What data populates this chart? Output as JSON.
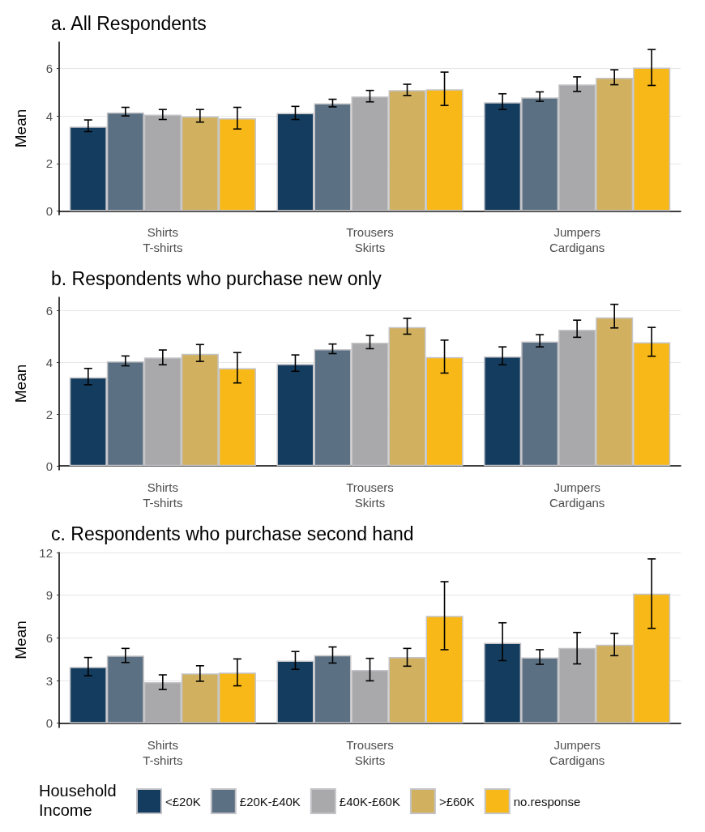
{
  "chart_data": [
    {
      "type": "bar",
      "title": "a. All Respondents",
      "ylabel": "Mean",
      "categories": [
        "Shirts\nT-shirts",
        "Trousers\nSkirts",
        "Jumpers\nCardigans"
      ],
      "ylim": [
        -0.15,
        7.1
      ],
      "yticks": [
        0,
        2,
        4,
        6
      ],
      "grid": "y",
      "legend": false,
      "series": [
        {
          "color": "#133c5e",
          "values": [
            3.55,
            4.12,
            4.57
          ],
          "errors": [
            [
              3.34,
              3.83
            ],
            [
              3.85,
              4.4
            ],
            [
              4.27,
              4.93
            ]
          ]
        },
        {
          "color": "#5b7083",
          "values": [
            4.15,
            4.53,
            4.78
          ],
          "errors": [
            [
              4.0,
              4.36
            ],
            [
              4.38,
              4.7
            ],
            [
              4.61,
              5.01
            ]
          ]
        },
        {
          "color": "#a9a9ab",
          "values": [
            4.05,
            4.82,
            5.32
          ],
          "errors": [
            [
              3.85,
              4.27
            ],
            [
              4.59,
              5.07
            ],
            [
              5.03,
              5.64
            ]
          ]
        },
        {
          "color": "#d1b15f",
          "values": [
            3.98,
            5.08,
            5.6
          ],
          "errors": [
            [
              3.74,
              4.27
            ],
            [
              4.86,
              5.33
            ],
            [
              5.31,
              5.94
            ]
          ]
        },
        {
          "color": "#f8b918",
          "values": [
            3.9,
            5.12,
            6.03
          ],
          "errors": [
            [
              3.45,
              4.36
            ],
            [
              4.44,
              5.84
            ],
            [
              5.28,
              6.79
            ]
          ]
        }
      ]
    },
    {
      "type": "bar",
      "title": "b. Respondents who purchase new only",
      "ylabel": "Mean",
      "categories": [
        "Shirts\nT-shirts",
        "Trousers\nSkirts",
        "Jumpers\nCardigans"
      ],
      "ylim": [
        -0.15,
        6.5
      ],
      "yticks": [
        0,
        2,
        4,
        6
      ],
      "grid": "y",
      "legend": false,
      "series": [
        {
          "color": "#133c5e",
          "values": [
            3.42,
            3.93,
            4.22
          ],
          "errors": [
            [
              3.13,
              3.76
            ],
            [
              3.65,
              4.28
            ],
            [
              3.9,
              4.59
            ]
          ]
        },
        {
          "color": "#5b7083",
          "values": [
            4.03,
            4.5,
            4.8
          ],
          "errors": [
            [
              3.86,
              4.24
            ],
            [
              4.33,
              4.7
            ],
            [
              4.59,
              5.06
            ]
          ]
        },
        {
          "color": "#a9a9ab",
          "values": [
            4.18,
            4.75,
            5.25
          ],
          "errors": [
            [
              3.9,
              4.47
            ],
            [
              4.52,
              5.03
            ],
            [
              4.96,
              5.62
            ]
          ]
        },
        {
          "color": "#d1b15f",
          "values": [
            4.32,
            5.35,
            5.73
          ],
          "errors": [
            [
              4.03,
              4.68
            ],
            [
              5.08,
              5.69
            ],
            [
              5.32,
              6.23
            ]
          ]
        },
        {
          "color": "#f8b918",
          "values": [
            3.77,
            4.2,
            4.77
          ],
          "errors": [
            [
              3.2,
              4.37
            ],
            [
              3.58,
              4.85
            ],
            [
              4.23,
              5.34
            ]
          ]
        }
      ]
    },
    {
      "type": "bar",
      "title": "c. Respondents who purchase second hand",
      "ylabel": "Mean",
      "legend_title": "Household\nIncome",
      "categories": [
        "Shirts\nT-shirts",
        "Trousers\nSkirts",
        "Jumpers\nCardigans"
      ],
      "ylim": [
        -0.3,
        12
      ],
      "yticks": [
        0,
        3,
        6,
        9,
        12
      ],
      "grid": "y",
      "legend": "bottom",
      "series": [
        {
          "name": "<£20K",
          "color": "#133c5e",
          "values": [
            3.95,
            4.4,
            5.65
          ],
          "errors": [
            [
              3.34,
              4.62
            ],
            [
              3.79,
              5.04
            ],
            [
              4.4,
              7.06
            ]
          ]
        },
        {
          "name": "£20K-£40K",
          "color": "#5b7083",
          "values": [
            4.75,
            4.78,
            4.62
          ],
          "errors": [
            [
              4.27,
              5.26
            ],
            [
              4.23,
              5.36
            ],
            [
              4.14,
              5.17
            ]
          ]
        },
        {
          "name": "£40K-£60K",
          "color": "#a9a9ab",
          "values": [
            2.89,
            3.75,
            5.29
          ],
          "errors": [
            [
              2.37,
              3.4
            ],
            [
              2.98,
              4.56
            ],
            [
              4.17,
              6.38
            ]
          ]
        },
        {
          "name": ">£60K",
          "color": "#d1b15f",
          "values": [
            3.5,
            4.65,
            5.52
          ],
          "errors": [
            [
              2.95,
              4.04
            ],
            [
              4.01,
              5.26
            ],
            [
              4.75,
              6.32
            ]
          ]
        },
        {
          "name": "no.response",
          "color": "#f8b918",
          "values": [
            3.56,
            7.55,
            9.11
          ],
          "errors": [
            [
              2.63,
              4.52
            ],
            [
              5.17,
              9.95
            ],
            [
              6.67,
              11.55
            ]
          ]
        }
      ]
    }
  ]
}
